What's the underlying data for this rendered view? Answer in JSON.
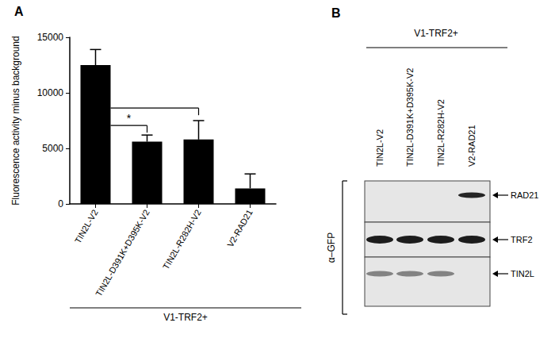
{
  "chart_data": {
    "type": "bar",
    "panel": "A",
    "y_label": "Fluorescence activity minus background",
    "categories": [
      "TIN2L-V2",
      "TIN2L-D391K+D395K-V2",
      "TIN2L-R282H-V2",
      "V2-RAD21"
    ],
    "values": [
      12500,
      5600,
      5800,
      1400
    ],
    "errors": [
      1400,
      600,
      1700,
      1300
    ],
    "color": "#000000",
    "ylim": [
      0,
      15000
    ],
    "yticks": [
      0,
      5000,
      10000,
      15000
    ],
    "grid": false,
    "group_label": "V1-TRF2+",
    "significance": [
      {
        "from": "TIN2L-V2",
        "to": "TIN2L-D391K+D395K-V2",
        "label": "*"
      },
      {
        "from": "TIN2L-V2",
        "to": "TIN2L-R282H-V2"
      }
    ]
  },
  "blot": {
    "panel": "B",
    "header": "V1-TRF2+",
    "lanes": [
      "TIN2L-V2",
      "TIN2L-D391K+D395K-V2",
      "TIN2L-R282H-V2",
      "V2-RAD21"
    ],
    "antibody": "α–GFP",
    "rows": [
      {
        "label": "RAD21",
        "bands": [
          false,
          false,
          false,
          true
        ]
      },
      {
        "label": "TRF2",
        "bands": [
          true,
          true,
          true,
          true
        ]
      },
      {
        "label": "TIN2L",
        "bands": [
          true,
          true,
          true,
          false
        ]
      }
    ]
  }
}
